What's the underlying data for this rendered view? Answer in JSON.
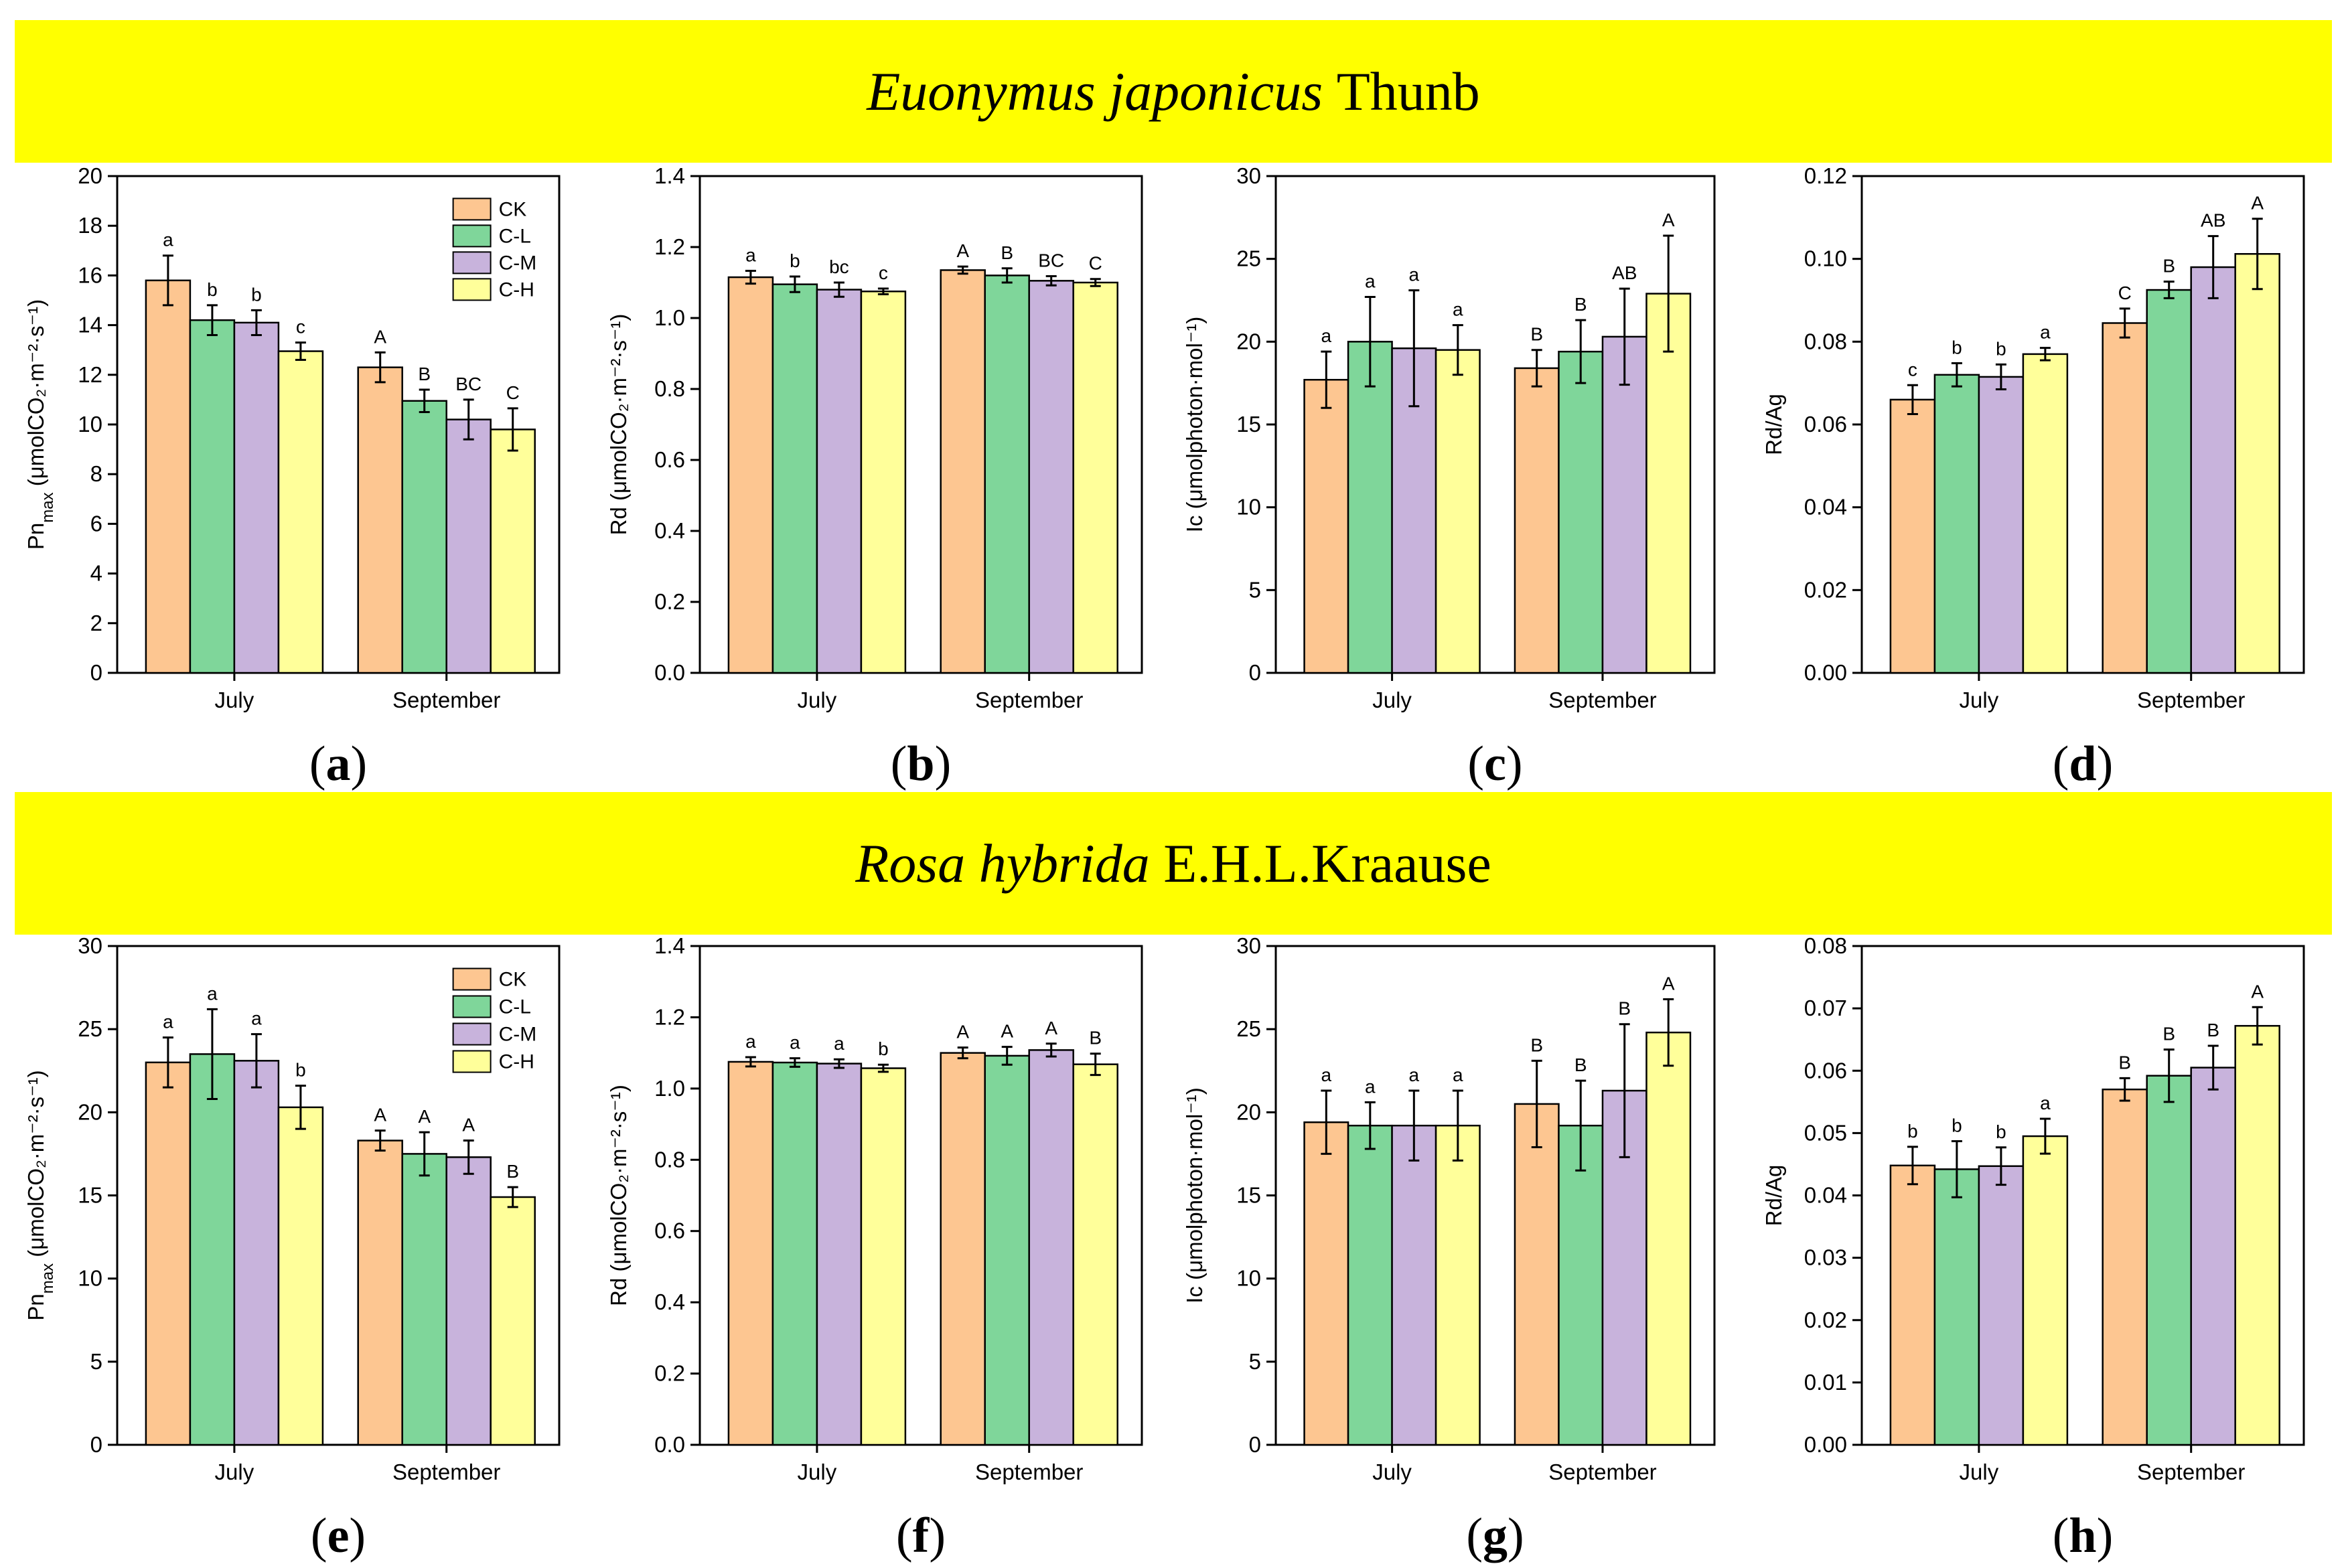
{
  "banners": {
    "top": {
      "species": "Euonymus japonicus",
      "authority": "Thunb"
    },
    "bottom": {
      "species": "Rosa hybrida",
      "authority": "E.H.L.Kraause"
    }
  },
  "colors": {
    "CK": "#fdc691",
    "C-L": "#7fd69a",
    "C-M": "#c8b3dc",
    "C-H": "#ffff9a"
  },
  "chart_data": [
    {
      "panel": "(a)",
      "type": "bar",
      "ylabel_main": "Pn",
      "ylabel_sub": "max",
      "ylabel_rest": " (μmolCO₂·m⁻²·s⁻¹)",
      "ylim": [
        0,
        20
      ],
      "yticks": [
        "0",
        "2",
        "4",
        "6",
        "8",
        "10",
        "12",
        "14",
        "16",
        "18",
        "20"
      ],
      "categories": [
        "July",
        "September"
      ],
      "legend": [
        "CK",
        "C-L",
        "C-M",
        "C-H"
      ],
      "series": [
        {
          "name": "CK",
          "values": [
            15.8,
            12.3
          ],
          "errors": [
            1.0,
            0.6
          ],
          "letters": [
            "a",
            "A"
          ]
        },
        {
          "name": "C-L",
          "values": [
            14.2,
            10.95
          ],
          "errors": [
            0.6,
            0.45
          ],
          "letters": [
            "b",
            "B"
          ]
        },
        {
          "name": "C-M",
          "values": [
            14.1,
            10.2
          ],
          "errors": [
            0.5,
            0.8
          ],
          "letters": [
            "b",
            "BC"
          ]
        },
        {
          "name": "C-H",
          "values": [
            12.95,
            9.8
          ],
          "errors": [
            0.35,
            0.85
          ],
          "letters": [
            "c",
            "C"
          ]
        }
      ]
    },
    {
      "panel": "(b)",
      "type": "bar",
      "ylabel_main": "Rd",
      "ylabel_sub": "",
      "ylabel_rest": " (μmolCO₂·m⁻²·s⁻¹)",
      "ylim": [
        0,
        1.4
      ],
      "yticks": [
        "0.0",
        "0.2",
        "0.4",
        "0.6",
        "0.8",
        "1.0",
        "1.2",
        "1.4"
      ],
      "categories": [
        "July",
        "September"
      ],
      "legend": [],
      "series": [
        {
          "name": "CK",
          "values": [
            1.115,
            1.135
          ],
          "errors": [
            0.018,
            0.01
          ],
          "letters": [
            "a",
            "A"
          ]
        },
        {
          "name": "C-L",
          "values": [
            1.095,
            1.12
          ],
          "errors": [
            0.022,
            0.02
          ],
          "letters": [
            "b",
            "B"
          ]
        },
        {
          "name": "C-M",
          "values": [
            1.08,
            1.105
          ],
          "errors": [
            0.02,
            0.013
          ],
          "letters": [
            "bc",
            "BC"
          ]
        },
        {
          "name": "C-H",
          "values": [
            1.075,
            1.1
          ],
          "errors": [
            0.008,
            0.01
          ],
          "letters": [
            "c",
            "C"
          ]
        }
      ]
    },
    {
      "panel": "(c)",
      "type": "bar",
      "ylabel_main": "Ic",
      "ylabel_sub": "",
      "ylabel_rest": " (μmolphoton·mol⁻¹)",
      "ylim": [
        0,
        30
      ],
      "yticks": [
        "0",
        "5",
        "10",
        "15",
        "20",
        "25",
        "30"
      ],
      "categories": [
        "July",
        "September"
      ],
      "legend": [],
      "series": [
        {
          "name": "CK",
          "values": [
            17.7,
            18.4
          ],
          "errors": [
            1.7,
            1.1
          ],
          "letters": [
            "a",
            "B"
          ]
        },
        {
          "name": "C-L",
          "values": [
            20.0,
            19.4
          ],
          "errors": [
            2.7,
            1.9
          ],
          "letters": [
            "a",
            "B"
          ]
        },
        {
          "name": "C-M",
          "values": [
            19.6,
            20.3
          ],
          "errors": [
            3.5,
            2.9
          ],
          "letters": [
            "a",
            "AB"
          ]
        },
        {
          "name": "C-H",
          "values": [
            19.5,
            22.9
          ],
          "errors": [
            1.5,
            3.5
          ],
          "letters": [
            "a",
            "A"
          ]
        }
      ]
    },
    {
      "panel": "(d)",
      "type": "bar",
      "ylabel_main": "Rd/Ag",
      "ylabel_sub": "",
      "ylabel_rest": "",
      "ylim": [
        0,
        0.12
      ],
      "yticks": [
        "0.00",
        "0.02",
        "0.04",
        "0.06",
        "0.08",
        "0.10",
        "0.12"
      ],
      "categories": [
        "July",
        "September"
      ],
      "legend": [],
      "series": [
        {
          "name": "CK",
          "values": [
            0.066,
            0.0845
          ],
          "errors": [
            0.0035,
            0.0035
          ],
          "letters": [
            "c",
            "C"
          ]
        },
        {
          "name": "C-L",
          "values": [
            0.072,
            0.0925
          ],
          "errors": [
            0.0028,
            0.002
          ],
          "letters": [
            "b",
            "B"
          ]
        },
        {
          "name": "C-M",
          "values": [
            0.0715,
            0.098
          ],
          "errors": [
            0.003,
            0.0075
          ],
          "letters": [
            "b",
            "AB"
          ]
        },
        {
          "name": "C-H",
          "values": [
            0.077,
            0.1012
          ],
          "errors": [
            0.0015,
            0.0085
          ],
          "letters": [
            "a",
            "A"
          ]
        }
      ]
    },
    {
      "panel": "(e)",
      "type": "bar",
      "ylabel_main": "Pn",
      "ylabel_sub": "max",
      "ylabel_rest": " (μmolCO₂·m⁻²·s⁻¹)",
      "ylim": [
        0,
        30
      ],
      "yticks": [
        "0",
        "5",
        "10",
        "15",
        "20",
        "25",
        "30"
      ],
      "categories": [
        "July",
        "September"
      ],
      "legend": [
        "CK",
        "C-L",
        "C-M",
        "C-H"
      ],
      "series": [
        {
          "name": "CK",
          "values": [
            23.0,
            18.3
          ],
          "errors": [
            1.5,
            0.6
          ],
          "letters": [
            "a",
            "A"
          ]
        },
        {
          "name": "C-L",
          "values": [
            23.5,
            17.5
          ],
          "errors": [
            2.7,
            1.3
          ],
          "letters": [
            "a",
            "A"
          ]
        },
        {
          "name": "C-M",
          "values": [
            23.1,
            17.3
          ],
          "errors": [
            1.6,
            1.0
          ],
          "letters": [
            "a",
            "A"
          ]
        },
        {
          "name": "C-H",
          "values": [
            20.3,
            14.9
          ],
          "errors": [
            1.3,
            0.6
          ],
          "letters": [
            "b",
            "B"
          ]
        }
      ]
    },
    {
      "panel": "(f)",
      "type": "bar",
      "ylabel_main": "Rd",
      "ylabel_sub": "",
      "ylabel_rest": " (μmolCO₂·m⁻²·s⁻¹)",
      "ylim": [
        0,
        1.4
      ],
      "yticks": [
        "0.0",
        "0.2",
        "0.4",
        "0.6",
        "0.8",
        "1.0",
        "1.2",
        "1.4"
      ],
      "categories": [
        "July",
        "September"
      ],
      "legend": [],
      "series": [
        {
          "name": "CK",
          "values": [
            1.075,
            1.1
          ],
          "errors": [
            0.013,
            0.015
          ],
          "letters": [
            "a",
            "A"
          ]
        },
        {
          "name": "C-L",
          "values": [
            1.073,
            1.092
          ],
          "errors": [
            0.012,
            0.025
          ],
          "letters": [
            "a",
            "A"
          ]
        },
        {
          "name": "C-M",
          "values": [
            1.07,
            1.108
          ],
          "errors": [
            0.012,
            0.018
          ],
          "letters": [
            "a",
            "A"
          ]
        },
        {
          "name": "C-H",
          "values": [
            1.057,
            1.068
          ],
          "errors": [
            0.01,
            0.03
          ],
          "letters": [
            "b",
            "B"
          ]
        }
      ]
    },
    {
      "panel": "(g)",
      "type": "bar",
      "ylabel_main": "Ic",
      "ylabel_sub": "",
      "ylabel_rest": " (μmolphoton·mol⁻¹)",
      "ylim": [
        0,
        30
      ],
      "yticks": [
        "0",
        "5",
        "10",
        "15",
        "20",
        "25",
        "30"
      ],
      "categories": [
        "July",
        "September"
      ],
      "legend": [],
      "series": [
        {
          "name": "CK",
          "values": [
            19.4,
            20.5
          ],
          "errors": [
            1.9,
            2.6
          ],
          "letters": [
            "a",
            "B"
          ]
        },
        {
          "name": "C-L",
          "values": [
            19.2,
            19.2
          ],
          "errors": [
            1.4,
            2.7
          ],
          "letters": [
            "a",
            "B"
          ]
        },
        {
          "name": "C-M",
          "values": [
            19.2,
            21.3
          ],
          "errors": [
            2.1,
            4.0
          ],
          "letters": [
            "a",
            "B"
          ]
        },
        {
          "name": "C-H",
          "values": [
            19.2,
            24.8
          ],
          "errors": [
            2.1,
            2.0
          ],
          "letters": [
            "a",
            "A"
          ]
        }
      ]
    },
    {
      "panel": "(h)",
      "type": "bar",
      "ylabel_main": "Rd/Ag",
      "ylabel_sub": "",
      "ylabel_rest": "",
      "ylim": [
        0,
        0.08
      ],
      "yticks": [
        "0.00",
        "0.01",
        "0.02",
        "0.03",
        "0.04",
        "0.05",
        "0.06",
        "0.07",
        "0.08"
      ],
      "categories": [
        "July",
        "September"
      ],
      "legend": [],
      "series": [
        {
          "name": "CK",
          "values": [
            0.0448,
            0.057
          ],
          "errors": [
            0.003,
            0.0018
          ],
          "letters": [
            "b",
            "B"
          ]
        },
        {
          "name": "C-L",
          "values": [
            0.0442,
            0.0592
          ],
          "errors": [
            0.0045,
            0.0042
          ],
          "letters": [
            "b",
            "B"
          ]
        },
        {
          "name": "C-M",
          "values": [
            0.0447,
            0.0605
          ],
          "errors": [
            0.003,
            0.0035
          ],
          "letters": [
            "b",
            "B"
          ]
        },
        {
          "name": "C-H",
          "values": [
            0.0495,
            0.0672
          ],
          "errors": [
            0.0028,
            0.003
          ],
          "letters": [
            "a",
            "A"
          ]
        }
      ]
    }
  ]
}
